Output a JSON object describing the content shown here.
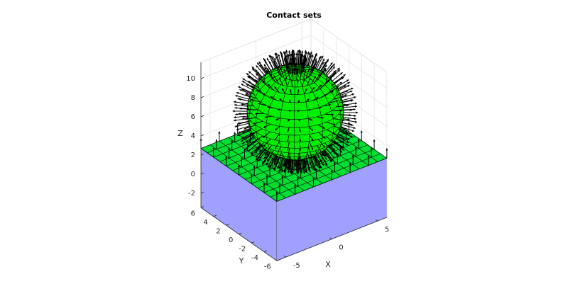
{
  "chart_data": {
    "type": "surface3d",
    "title": "Contact sets",
    "xlabel": "X",
    "ylabel": "Y",
    "zlabel": "Z",
    "xlim": [
      -6,
      6
    ],
    "ylim": [
      -6,
      6
    ],
    "zlim": [
      -3.5,
      11.7
    ],
    "xticks": [
      -5,
      0,
      5
    ],
    "yticks": [
      -6,
      -4,
      -2,
      0,
      2,
      4,
      6
    ],
    "zticks": [
      -2,
      0,
      2,
      4,
      6,
      8,
      10
    ],
    "grid": true
  }
}
